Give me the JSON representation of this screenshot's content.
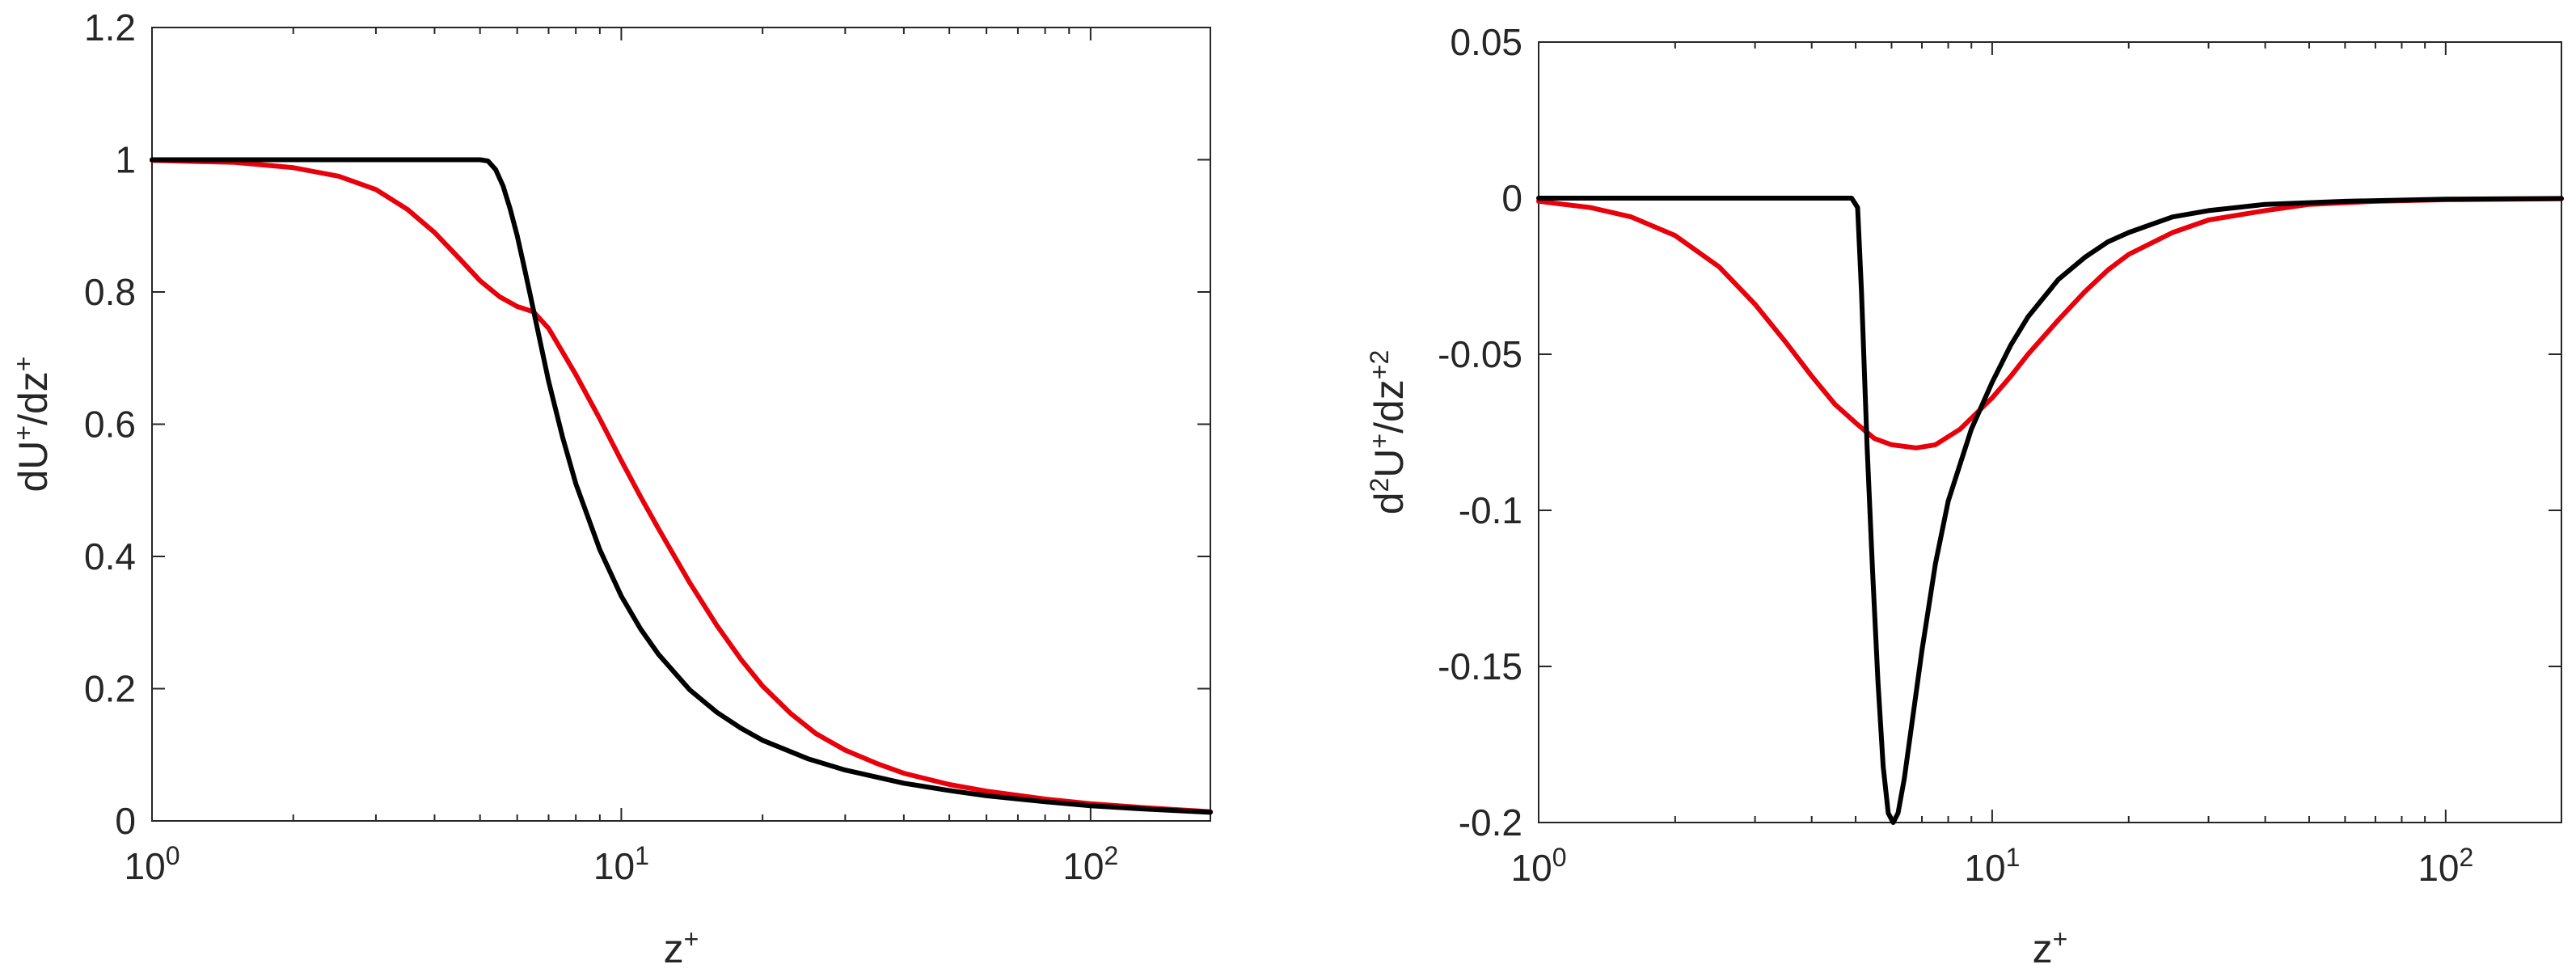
{
  "chart_data": [
    {
      "type": "line",
      "xscale": "log",
      "xlim": [
        1,
        180
      ],
      "ylim": [
        0,
        1.2
      ],
      "xlabel": {
        "base": "z",
        "sup": "+"
      },
      "ylabel": {
        "parts": [
          [
            "dU",
            "+"
          ],
          [
            "/dz",
            "+"
          ]
        ]
      },
      "xticks": [
        {
          "value": 1,
          "base": "10",
          "exp": "0"
        },
        {
          "value": 10,
          "base": "10",
          "exp": "1"
        },
        {
          "value": 100,
          "base": "10",
          "exp": "2"
        }
      ],
      "yticks": [
        {
          "value": 0,
          "label": "0"
        },
        {
          "value": 0.2,
          "label": "0.2"
        },
        {
          "value": 0.4,
          "label": "0.4"
        },
        {
          "value": 0.6,
          "label": "0.6"
        },
        {
          "value": 0.8,
          "label": "0.8"
        },
        {
          "value": 1,
          "label": "1"
        },
        {
          "value": 1.2,
          "label": "1.2"
        }
      ],
      "series": [
        {
          "color": "#e8000b",
          "points": [
            [
              1,
              0.999
            ],
            [
              1.5,
              0.996
            ],
            [
              2,
              0.988
            ],
            [
              2.5,
              0.975
            ],
            [
              3,
              0.955
            ],
            [
              3.5,
              0.925
            ],
            [
              4,
              0.89
            ],
            [
              4.5,
              0.852
            ],
            [
              5,
              0.817
            ],
            [
              5.5,
              0.793
            ],
            [
              6,
              0.778
            ],
            [
              6.5,
              0.77
            ],
            [
              7,
              0.745
            ],
            [
              8,
              0.675
            ],
            [
              9,
              0.608
            ],
            [
              10,
              0.545
            ],
            [
              11,
              0.49
            ],
            [
              12,
              0.442
            ],
            [
              14,
              0.36
            ],
            [
              16,
              0.295
            ],
            [
              18,
              0.244
            ],
            [
              20,
              0.204
            ],
            [
              23,
              0.162
            ],
            [
              26,
              0.132
            ],
            [
              30,
              0.107
            ],
            [
              35,
              0.087
            ],
            [
              40,
              0.072
            ],
            [
              50,
              0.055
            ],
            [
              60,
              0.045
            ],
            [
              80,
              0.033
            ],
            [
              100,
              0.026
            ],
            [
              130,
              0.02
            ],
            [
              180,
              0.014
            ]
          ]
        },
        {
          "color": "#000000",
          "points": [
            [
              1,
              1.0
            ],
            [
              2,
              1.0
            ],
            [
              3,
              1.0
            ],
            [
              4,
              1.0
            ],
            [
              5,
              1.0
            ],
            [
              5.2,
              0.998
            ],
            [
              5.4,
              0.985
            ],
            [
              5.6,
              0.96
            ],
            [
              5.8,
              0.925
            ],
            [
              6,
              0.885
            ],
            [
              6.2,
              0.84
            ],
            [
              6.4,
              0.795
            ],
            [
              6.6,
              0.75
            ],
            [
              7,
              0.665
            ],
            [
              7.5,
              0.58
            ],
            [
              8,
              0.51
            ],
            [
              9,
              0.41
            ],
            [
              10,
              0.34
            ],
            [
              11,
              0.29
            ],
            [
              12,
              0.252
            ],
            [
              14,
              0.198
            ],
            [
              16,
              0.164
            ],
            [
              18,
              0.14
            ],
            [
              20,
              0.122
            ],
            [
              25,
              0.094
            ],
            [
              30,
              0.077
            ],
            [
              40,
              0.057
            ],
            [
              50,
              0.046
            ],
            [
              60,
              0.038
            ],
            [
              80,
              0.029
            ],
            [
              100,
              0.023
            ],
            [
              130,
              0.018
            ],
            [
              180,
              0.013
            ]
          ]
        }
      ]
    },
    {
      "type": "line",
      "xscale": "log",
      "xlim": [
        1,
        180
      ],
      "ylim": [
        -0.2,
        0.05
      ],
      "xlabel": {
        "base": "z",
        "sup": "+"
      },
      "ylabel": {
        "parts": [
          [
            "d",
            "2"
          ],
          [
            "U",
            "+"
          ],
          [
            "/dz",
            "+2"
          ]
        ]
      },
      "xticks": [
        {
          "value": 1,
          "base": "10",
          "exp": "0"
        },
        {
          "value": 10,
          "base": "10",
          "exp": "1"
        },
        {
          "value": 100,
          "base": "10",
          "exp": "2"
        }
      ],
      "yticks": [
        {
          "value": -0.2,
          "label": "-0.2"
        },
        {
          "value": -0.15,
          "label": "-0.15"
        },
        {
          "value": -0.1,
          "label": "-0.1"
        },
        {
          "value": -0.05,
          "label": "-0.05"
        },
        {
          "value": 0,
          "label": "0"
        },
        {
          "value": 0.05,
          "label": "0.05"
        }
      ],
      "series": [
        {
          "color": "#e8000b",
          "points": [
            [
              1,
              -0.001
            ],
            [
              1.3,
              -0.003
            ],
            [
              1.6,
              -0.006
            ],
            [
              2,
              -0.012
            ],
            [
              2.5,
              -0.022
            ],
            [
              3,
              -0.034
            ],
            [
              3.5,
              -0.046
            ],
            [
              4,
              -0.057
            ],
            [
              4.5,
              -0.066
            ],
            [
              5,
              -0.072
            ],
            [
              5.5,
              -0.077
            ],
            [
              6,
              -0.079
            ],
            [
              6.8,
              -0.08
            ],
            [
              7.5,
              -0.079
            ],
            [
              8.5,
              -0.074
            ],
            [
              10,
              -0.064
            ],
            [
              11,
              -0.057
            ],
            [
              12,
              -0.05
            ],
            [
              14,
              -0.039
            ],
            [
              16,
              -0.03
            ],
            [
              18,
              -0.023
            ],
            [
              20,
              -0.018
            ],
            [
              25,
              -0.011
            ],
            [
              30,
              -0.007
            ],
            [
              40,
              -0.004
            ],
            [
              50,
              -0.002
            ],
            [
              70,
              -0.001
            ],
            [
              100,
              -0.0005
            ],
            [
              180,
              -0.0002
            ]
          ]
        },
        {
          "color": "#000000",
          "points": [
            [
              1,
              0
            ],
            [
              3,
              0
            ],
            [
              4.9,
              0
            ],
            [
              5.05,
              -0.003
            ],
            [
              5.15,
              -0.03
            ],
            [
              5.3,
              -0.08
            ],
            [
              5.45,
              -0.12
            ],
            [
              5.6,
              -0.155
            ],
            [
              5.75,
              -0.182
            ],
            [
              5.9,
              -0.197
            ],
            [
              6.05,
              -0.2
            ],
            [
              6.2,
              -0.197
            ],
            [
              6.4,
              -0.186
            ],
            [
              6.7,
              -0.165
            ],
            [
              7,
              -0.145
            ],
            [
              7.5,
              -0.117
            ],
            [
              8,
              -0.097
            ],
            [
              9,
              -0.074
            ],
            [
              10,
              -0.059
            ],
            [
              11,
              -0.047
            ],
            [
              12,
              -0.038
            ],
            [
              14,
              -0.026
            ],
            [
              16,
              -0.019
            ],
            [
              18,
              -0.014
            ],
            [
              20,
              -0.011
            ],
            [
              25,
              -0.006
            ],
            [
              30,
              -0.004
            ],
            [
              40,
              -0.002
            ],
            [
              60,
              -0.001
            ],
            [
              100,
              -0.0003
            ],
            [
              180,
              -0.0001
            ]
          ]
        }
      ]
    }
  ]
}
